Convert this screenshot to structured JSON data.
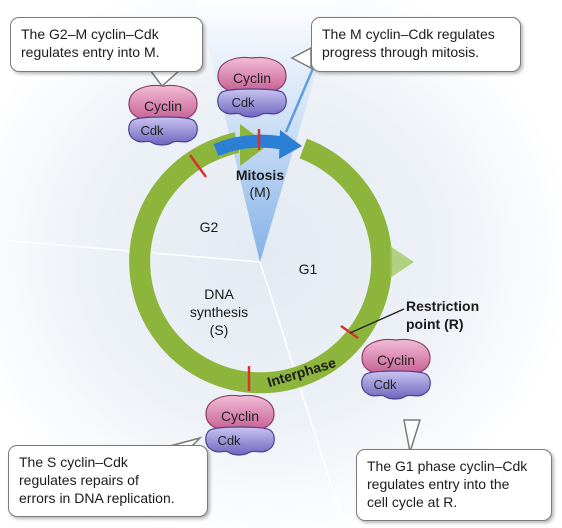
{
  "callouts": {
    "g2m": [
      "The G2–M cyclin–Cdk",
      "regulates entry into M."
    ],
    "m": [
      "The M cyclin–Cdk regulates",
      "progress through mitosis."
    ],
    "s": [
      "The S cyclin–Cdk",
      "regulates repairs of",
      "errors in DNA replication."
    ],
    "g1": [
      "The G1 phase cyclin–Cdk",
      "regulates entry into the",
      "cell cycle at R."
    ]
  },
  "phases": {
    "mitosis": [
      "Mitosis",
      "(M)"
    ],
    "g2": "G2",
    "g1": "G1",
    "s": [
      "DNA",
      "synthesis",
      "(S)"
    ],
    "interphase": "Interphase",
    "restriction": [
      "Restriction",
      "point (R)"
    ]
  },
  "complex": {
    "cyclin": "Cyclin",
    "cdk": "Cdk"
  },
  "colors": {
    "cycle_green": "#8db53c",
    "mitosis_blue": "#2b7fd4",
    "wedge_blue": "#9ec3ec",
    "cyclin_pink": "#cf6d9c",
    "cdk_purple": "#7a6fc4",
    "marker_red": "#d9332b"
  }
}
